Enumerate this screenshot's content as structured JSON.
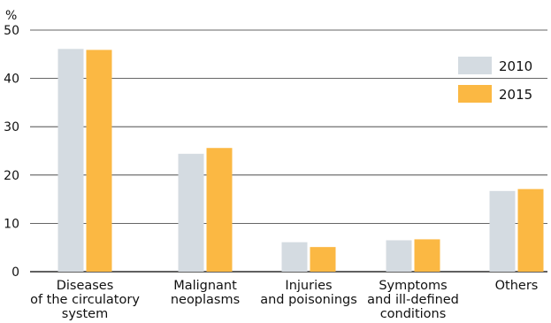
{
  "chart_data": {
    "type": "bar",
    "unit_label": "%",
    "categories": [
      [
        "Diseases",
        "of the circulatory",
        "system"
      ],
      [
        "Malignant",
        "neoplasms"
      ],
      [
        "Injuries",
        "and poisonings"
      ],
      [
        "Symptoms",
        "and ill-defined",
        "conditions"
      ],
      [
        "Others"
      ]
    ],
    "series": [
      {
        "name": "2010",
        "color": "#d4dbe1",
        "values": [
          46.1,
          24.4,
          6.1,
          6.5,
          16.7
        ]
      },
      {
        "name": "2015",
        "color": "#fbb843",
        "values": [
          45.9,
          25.6,
          5.1,
          6.7,
          17.1
        ]
      }
    ],
    "ylim": [
      0,
      50
    ],
    "yticks": [
      "0",
      "10",
      "20",
      "30",
      "40",
      "50"
    ],
    "grid": true,
    "legend_position": "top-right"
  }
}
